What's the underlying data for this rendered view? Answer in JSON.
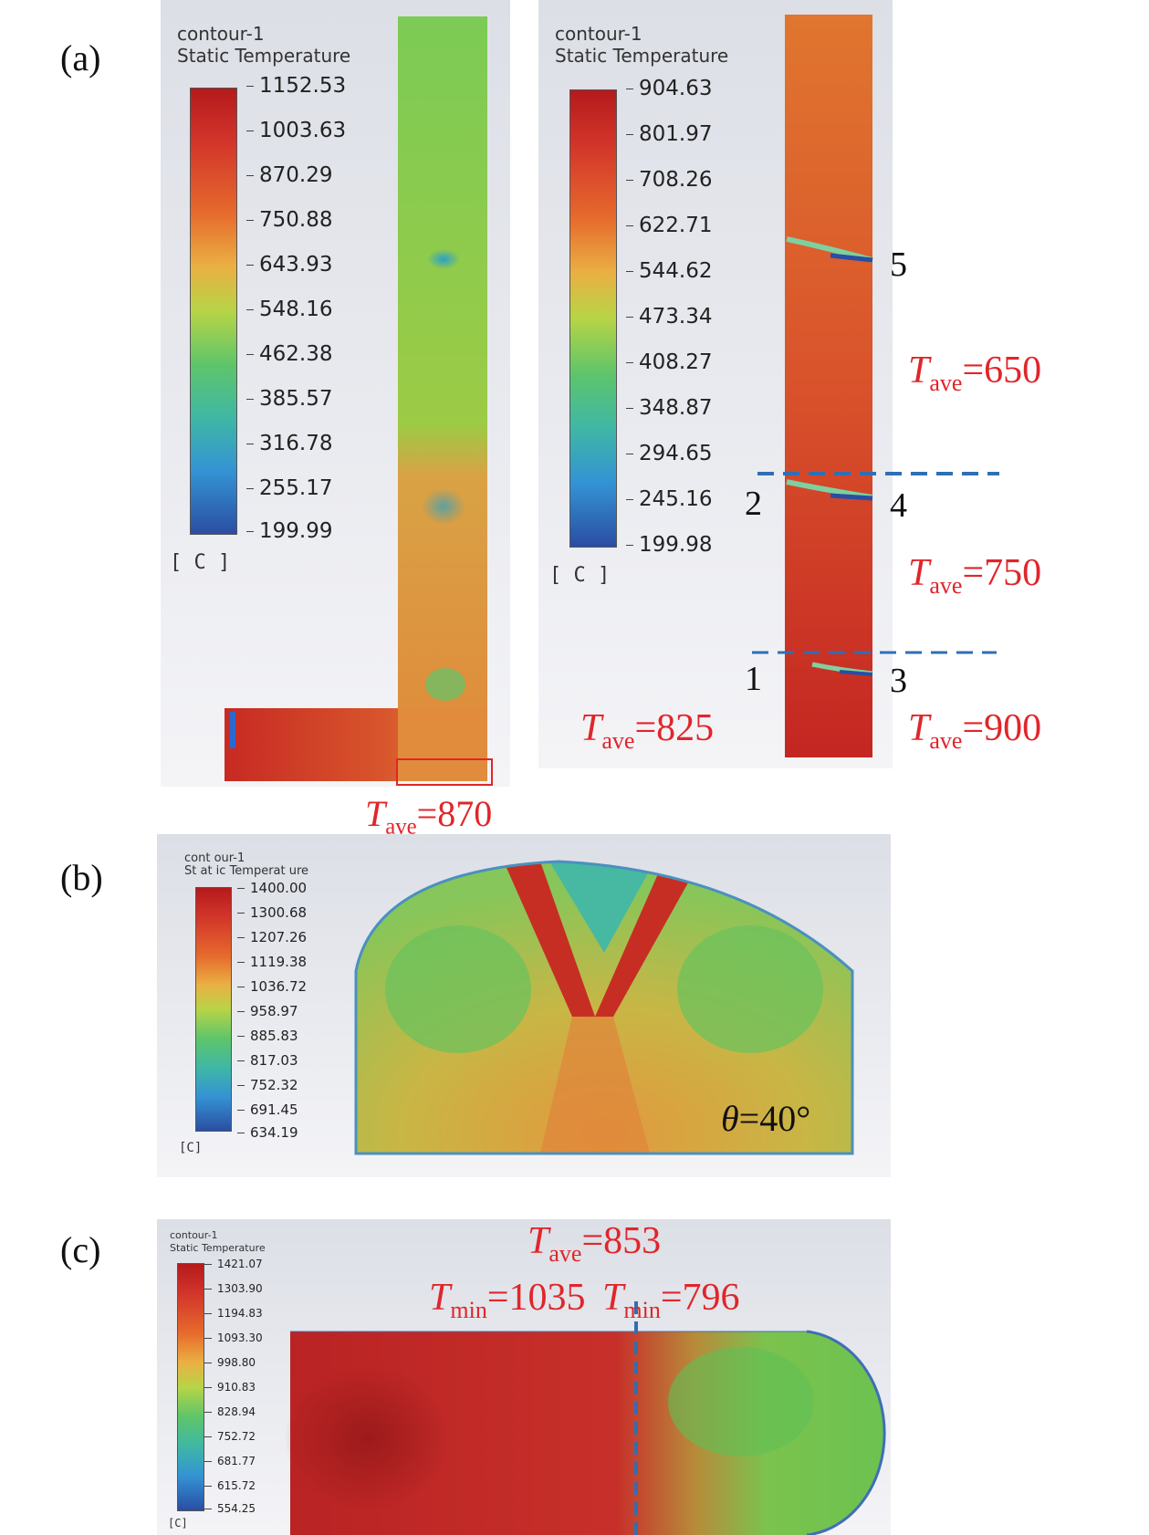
{
  "panel_a": {
    "label": "(a)",
    "left": {
      "title": "contour-1",
      "subtitle": "Static Temperature",
      "ticks": [
        "1152.53",
        "1003.63",
        "870.29",
        "750.88",
        "643.93",
        "548.16",
        "462.38",
        "385.57",
        "316.78",
        "255.17",
        "199.99"
      ],
      "unit": "[ C ]",
      "outlet_annotation": {
        "T": "T",
        "sub": "ave",
        "value": "=870"
      }
    },
    "right": {
      "title": "contour-1",
      "subtitle": "Static Temperature",
      "ticks": [
        "904.63",
        "801.97",
        "708.26",
        "622.71",
        "544.62",
        "473.34",
        "408.27",
        "348.87",
        "294.65",
        "245.16",
        "199.98"
      ],
      "unit": "[ C ]",
      "points": [
        "5",
        "2",
        "4",
        "1",
        "3"
      ],
      "annotations": [
        {
          "T": "T",
          "sub": "ave",
          "value": "=650"
        },
        {
          "T": "T",
          "sub": "ave",
          "value": "=750"
        },
        {
          "T": "T",
          "sub": "ave",
          "value": "=825"
        },
        {
          "T": "T",
          "sub": "ave",
          "value": "=900"
        }
      ]
    }
  },
  "panel_b": {
    "label": "(b)",
    "title": "cont our-1",
    "subtitle": "St at ic Temperat ure",
    "ticks": [
      "1400.00",
      "1300.68",
      "1207.26",
      "1119.38",
      "1036.72",
      "958.97",
      "885.83",
      "817.03",
      "752.32",
      "691.45",
      "634.19"
    ],
    "unit": "[C]",
    "angle": {
      "symbol": "θ",
      "value": "=40°"
    }
  },
  "panel_c": {
    "label": "(c)",
    "title": "contour-1",
    "subtitle": "Static Temperature",
    "ticks": [
      "1421.07",
      "1303.90",
      "1194.83",
      "1093.30",
      "998.80",
      "910.83",
      "828.94",
      "752.72",
      "681.77",
      "615.72",
      "554.25"
    ],
    "unit": "[C]",
    "annotations": [
      {
        "T": "T",
        "sub": "ave",
        "value": "=853"
      },
      {
        "T": "T",
        "sub": "min",
        "value": "=1035"
      },
      {
        "T": "T",
        "sub": "min",
        "value": "=796"
      }
    ]
  },
  "colors": {
    "annotation": "#e0262a",
    "dashed_line": "#2f6fb5"
  }
}
